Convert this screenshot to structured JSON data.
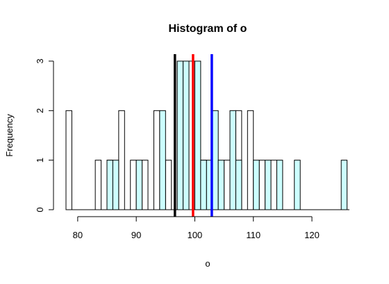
{
  "chart_data": {
    "type": "bar",
    "title": "Histogram of o",
    "xlabel": "o",
    "ylabel": "Frequency",
    "xlim": [
      78,
      126.4
    ],
    "ylim": [
      0,
      3
    ],
    "x_ticks": [
      80,
      90,
      100,
      110,
      120
    ],
    "y_ticks": [
      0,
      1,
      2,
      3
    ],
    "colors": {
      "hist_outline": "#000000",
      "hist_filled": "#CCFFFF",
      "line_black": "#000000",
      "line_red": "#FF0000",
      "line_blue": "#0000FF"
    },
    "series": [
      {
        "name": "",
        "fill": "none",
        "bin_width": 1,
        "bins": [
          {
            "x0": 78,
            "x1": 79,
            "count": 2
          },
          {
            "x0": 83,
            "x1": 84,
            "count": 1
          },
          {
            "x0": 85,
            "x1": 86,
            "count": 1
          },
          {
            "x0": 87,
            "x1": 88,
            "count": 2
          },
          {
            "x0": 89,
            "x1": 90,
            "count": 1
          },
          {
            "x0": 91,
            "x1": 92,
            "count": 1
          },
          {
            "x0": 93,
            "x1": 94,
            "count": 2
          },
          {
            "x0": 95,
            "x1": 96,
            "count": 1
          },
          {
            "x0": 97,
            "x1": 98,
            "count": 3
          },
          {
            "x0": 99,
            "x1": 100,
            "count": 3
          },
          {
            "x0": 101,
            "x1": 102,
            "count": 1
          },
          {
            "x0": 103,
            "x1": 104,
            "count": 1
          },
          {
            "x0": 105,
            "x1": 106,
            "count": 1
          },
          {
            "x0": 107,
            "x1": 108,
            "count": 2
          },
          {
            "x0": 109,
            "x1": 110,
            "count": 2
          },
          {
            "x0": 111,
            "x1": 112,
            "count": 1
          },
          {
            "x0": 113,
            "x1": 114,
            "count": 1
          }
        ]
      },
      {
        "name": "",
        "fill": "#CCFFFF",
        "bin_width": 1,
        "bins": [
          {
            "x0": 85,
            "x1": 86,
            "count": 1
          },
          {
            "x0": 86,
            "x1": 87,
            "count": 1
          },
          {
            "x0": 90,
            "x1": 91,
            "count": 1
          },
          {
            "x0": 94,
            "x1": 95,
            "count": 2
          },
          {
            "x0": 97,
            "x1": 98,
            "count": 3
          },
          {
            "x0": 98,
            "x1": 99,
            "count": 3
          },
          {
            "x0": 100,
            "x1": 101,
            "count": 3
          },
          {
            "x0": 101,
            "x1": 102,
            "count": 1
          },
          {
            "x0": 102,
            "x1": 103,
            "count": 1
          },
          {
            "x0": 103,
            "x1": 104,
            "count": 2
          },
          {
            "x0": 104,
            "x1": 105,
            "count": 1
          },
          {
            "x0": 106,
            "x1": 107,
            "count": 2
          },
          {
            "x0": 107,
            "x1": 108,
            "count": 1
          },
          {
            "x0": 110,
            "x1": 111,
            "count": 1
          },
          {
            "x0": 112,
            "x1": 113,
            "count": 1
          },
          {
            "x0": 114,
            "x1": 115,
            "count": 1
          },
          {
            "x0": 117,
            "x1": 118,
            "count": 1
          },
          {
            "x0": 125,
            "x1": 126,
            "count": 1
          }
        ]
      }
    ],
    "vertical_lines": [
      {
        "x": 96.6,
        "color": "#000000"
      },
      {
        "x": 99.7,
        "color": "#FF0000"
      },
      {
        "x": 102.9,
        "color": "#0000FF"
      }
    ]
  }
}
